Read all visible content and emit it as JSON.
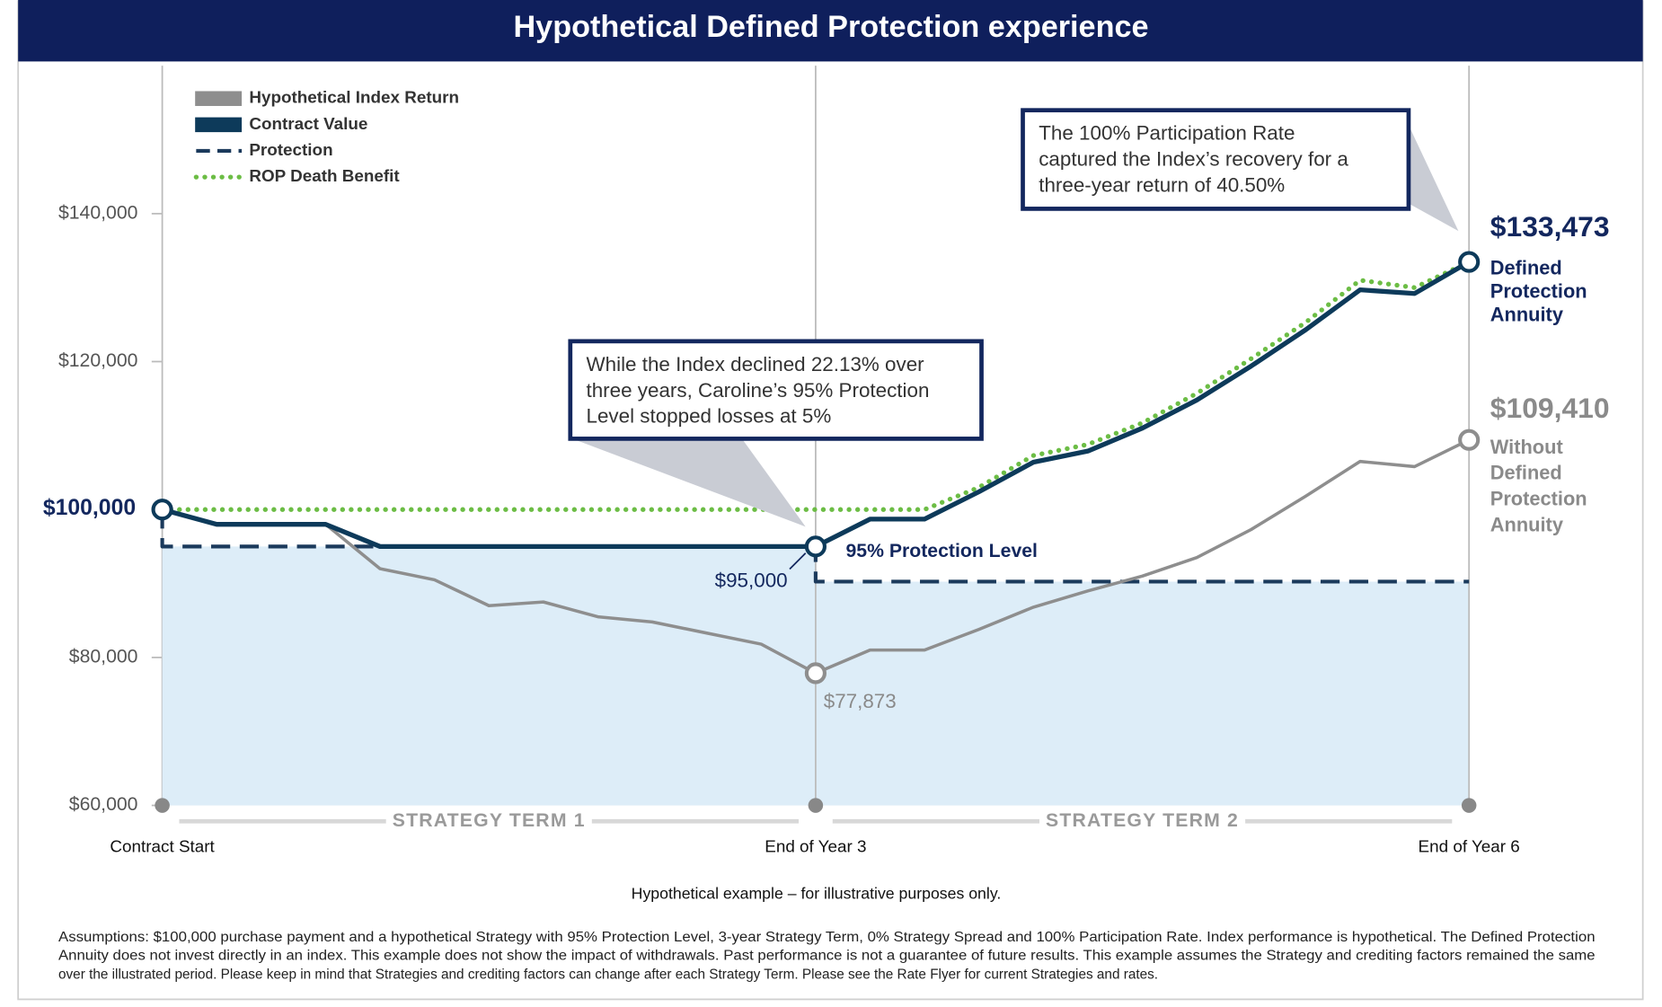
{
  "header": {
    "title": "Hypothetical Defined Protection experience"
  },
  "chart_data": {
    "type": "line",
    "x": [
      0,
      1,
      2,
      3,
      4,
      5,
      6,
      7,
      8,
      9,
      10,
      11,
      12,
      13,
      14,
      15,
      16,
      17,
      18,
      19,
      20,
      21,
      22,
      23,
      24
    ],
    "xlim": [
      0,
      24
    ],
    "xticks": [
      {
        "value": 0,
        "label": "Contract Start"
      },
      {
        "value": 12,
        "label": "End of Year 3"
      },
      {
        "value": 24,
        "label": "End of Year 6"
      }
    ],
    "ylim": [
      60000,
      160000
    ],
    "yticks": [
      {
        "value": 60000,
        "label": "$60,000"
      },
      {
        "value": 80000,
        "label": "$80,000"
      },
      {
        "value": 120000,
        "label": "$120,000"
      },
      {
        "value": 140000,
        "label": "$140,000"
      }
    ],
    "legend": "upper left",
    "series": [
      {
        "name": "Hypothetical Index Return",
        "color": "#8e8e8e",
        "style": "solid",
        "values": [
          100000,
          98000,
          98000,
          98000,
          92000,
          90500,
          87000,
          87500,
          85500,
          84800,
          83300,
          81800,
          77873,
          81000,
          81000,
          83800,
          86800,
          89000,
          91000,
          93500,
          97300,
          101800,
          106500,
          105800,
          109410
        ],
        "value_labels": [
          null,
          null,
          null,
          null,
          null,
          null,
          null,
          null,
          null,
          null,
          null,
          null,
          "$77,873",
          null,
          null,
          null,
          null,
          null,
          null,
          null,
          null,
          null,
          null,
          null,
          "$109,410"
        ],
        "description": [
          "Without",
          "Defined",
          "Protection",
          "Annuity"
        ]
      },
      {
        "name": "Contract Value",
        "color": "#0d3a5a",
        "style": "solid",
        "values": [
          100000,
          98000,
          98000,
          98000,
          95000,
          95000,
          95000,
          95000,
          95000,
          95000,
          95000,
          95000,
          95000,
          98700,
          98700,
          102400,
          106400,
          107900,
          111000,
          114800,
          119400,
          124300,
          129700,
          129200,
          133473
        ],
        "value_labels": [
          "$100,000",
          null,
          null,
          null,
          null,
          null,
          null,
          null,
          null,
          null,
          null,
          null,
          "$95,000",
          null,
          null,
          null,
          null,
          null,
          null,
          null,
          null,
          null,
          null,
          null,
          "$133,473"
        ],
        "description": [
          "Defined",
          "Protection",
          "Annuity"
        ]
      },
      {
        "name": "Protection",
        "color": "#1b3a5c",
        "style": "dashed",
        "fill_below": "#ddedf8",
        "x": [
          0,
          0,
          12,
          12,
          24
        ],
        "values": [
          100000,
          95000,
          95000,
          90250,
          90250
        ],
        "label": "95% Protection Level"
      },
      {
        "name": "ROP Death Benefit",
        "color": "#6cbd45",
        "style": "dotted",
        "values": [
          100000,
          100000,
          100000,
          100000,
          100000,
          100000,
          100000,
          100000,
          100000,
          100000,
          100000,
          100000,
          100000,
          100000,
          100000,
          103000,
          107300,
          108800,
          111700,
          115700,
          120400,
          125300,
          131000,
          130000,
          133473
        ]
      }
    ],
    "callouts": [
      {
        "lines": [
          "While the Index declined 22.13% over",
          "three years, Caroline’s 95% Protection",
          "Level stopped losses at 5%"
        ]
      },
      {
        "lines": [
          "The 100% Participation Rate",
          "captured the Index’s recovery for a",
          "three-year return of 40.50%"
        ]
      }
    ],
    "terms": [
      "STRATEGY TERM 1",
      "STRATEGY TERM 2"
    ]
  },
  "note": "Hypothetical example – for illustrative purposes only.",
  "assumptions": [
    "Assumptions: $100,000 purchase payment and a hypothetical Strategy with 95% Protection Level, 3-year Strategy Term, 0% Strategy Spread and 100% Participation Rate. Index performance is hypothetical. The Defined Protection",
    "Annuity does not invest directly in an index. This example does not show the impact of withdrawals. Past performance is not a guarantee of future results. This example assumes the Strategy and crediting factors remained the same",
    "over the illustrated period. Please keep in mind that Strategies and crediting factors can change after each Strategy Term. Please see the Rate Flyer for current Strategies and rates."
  ]
}
